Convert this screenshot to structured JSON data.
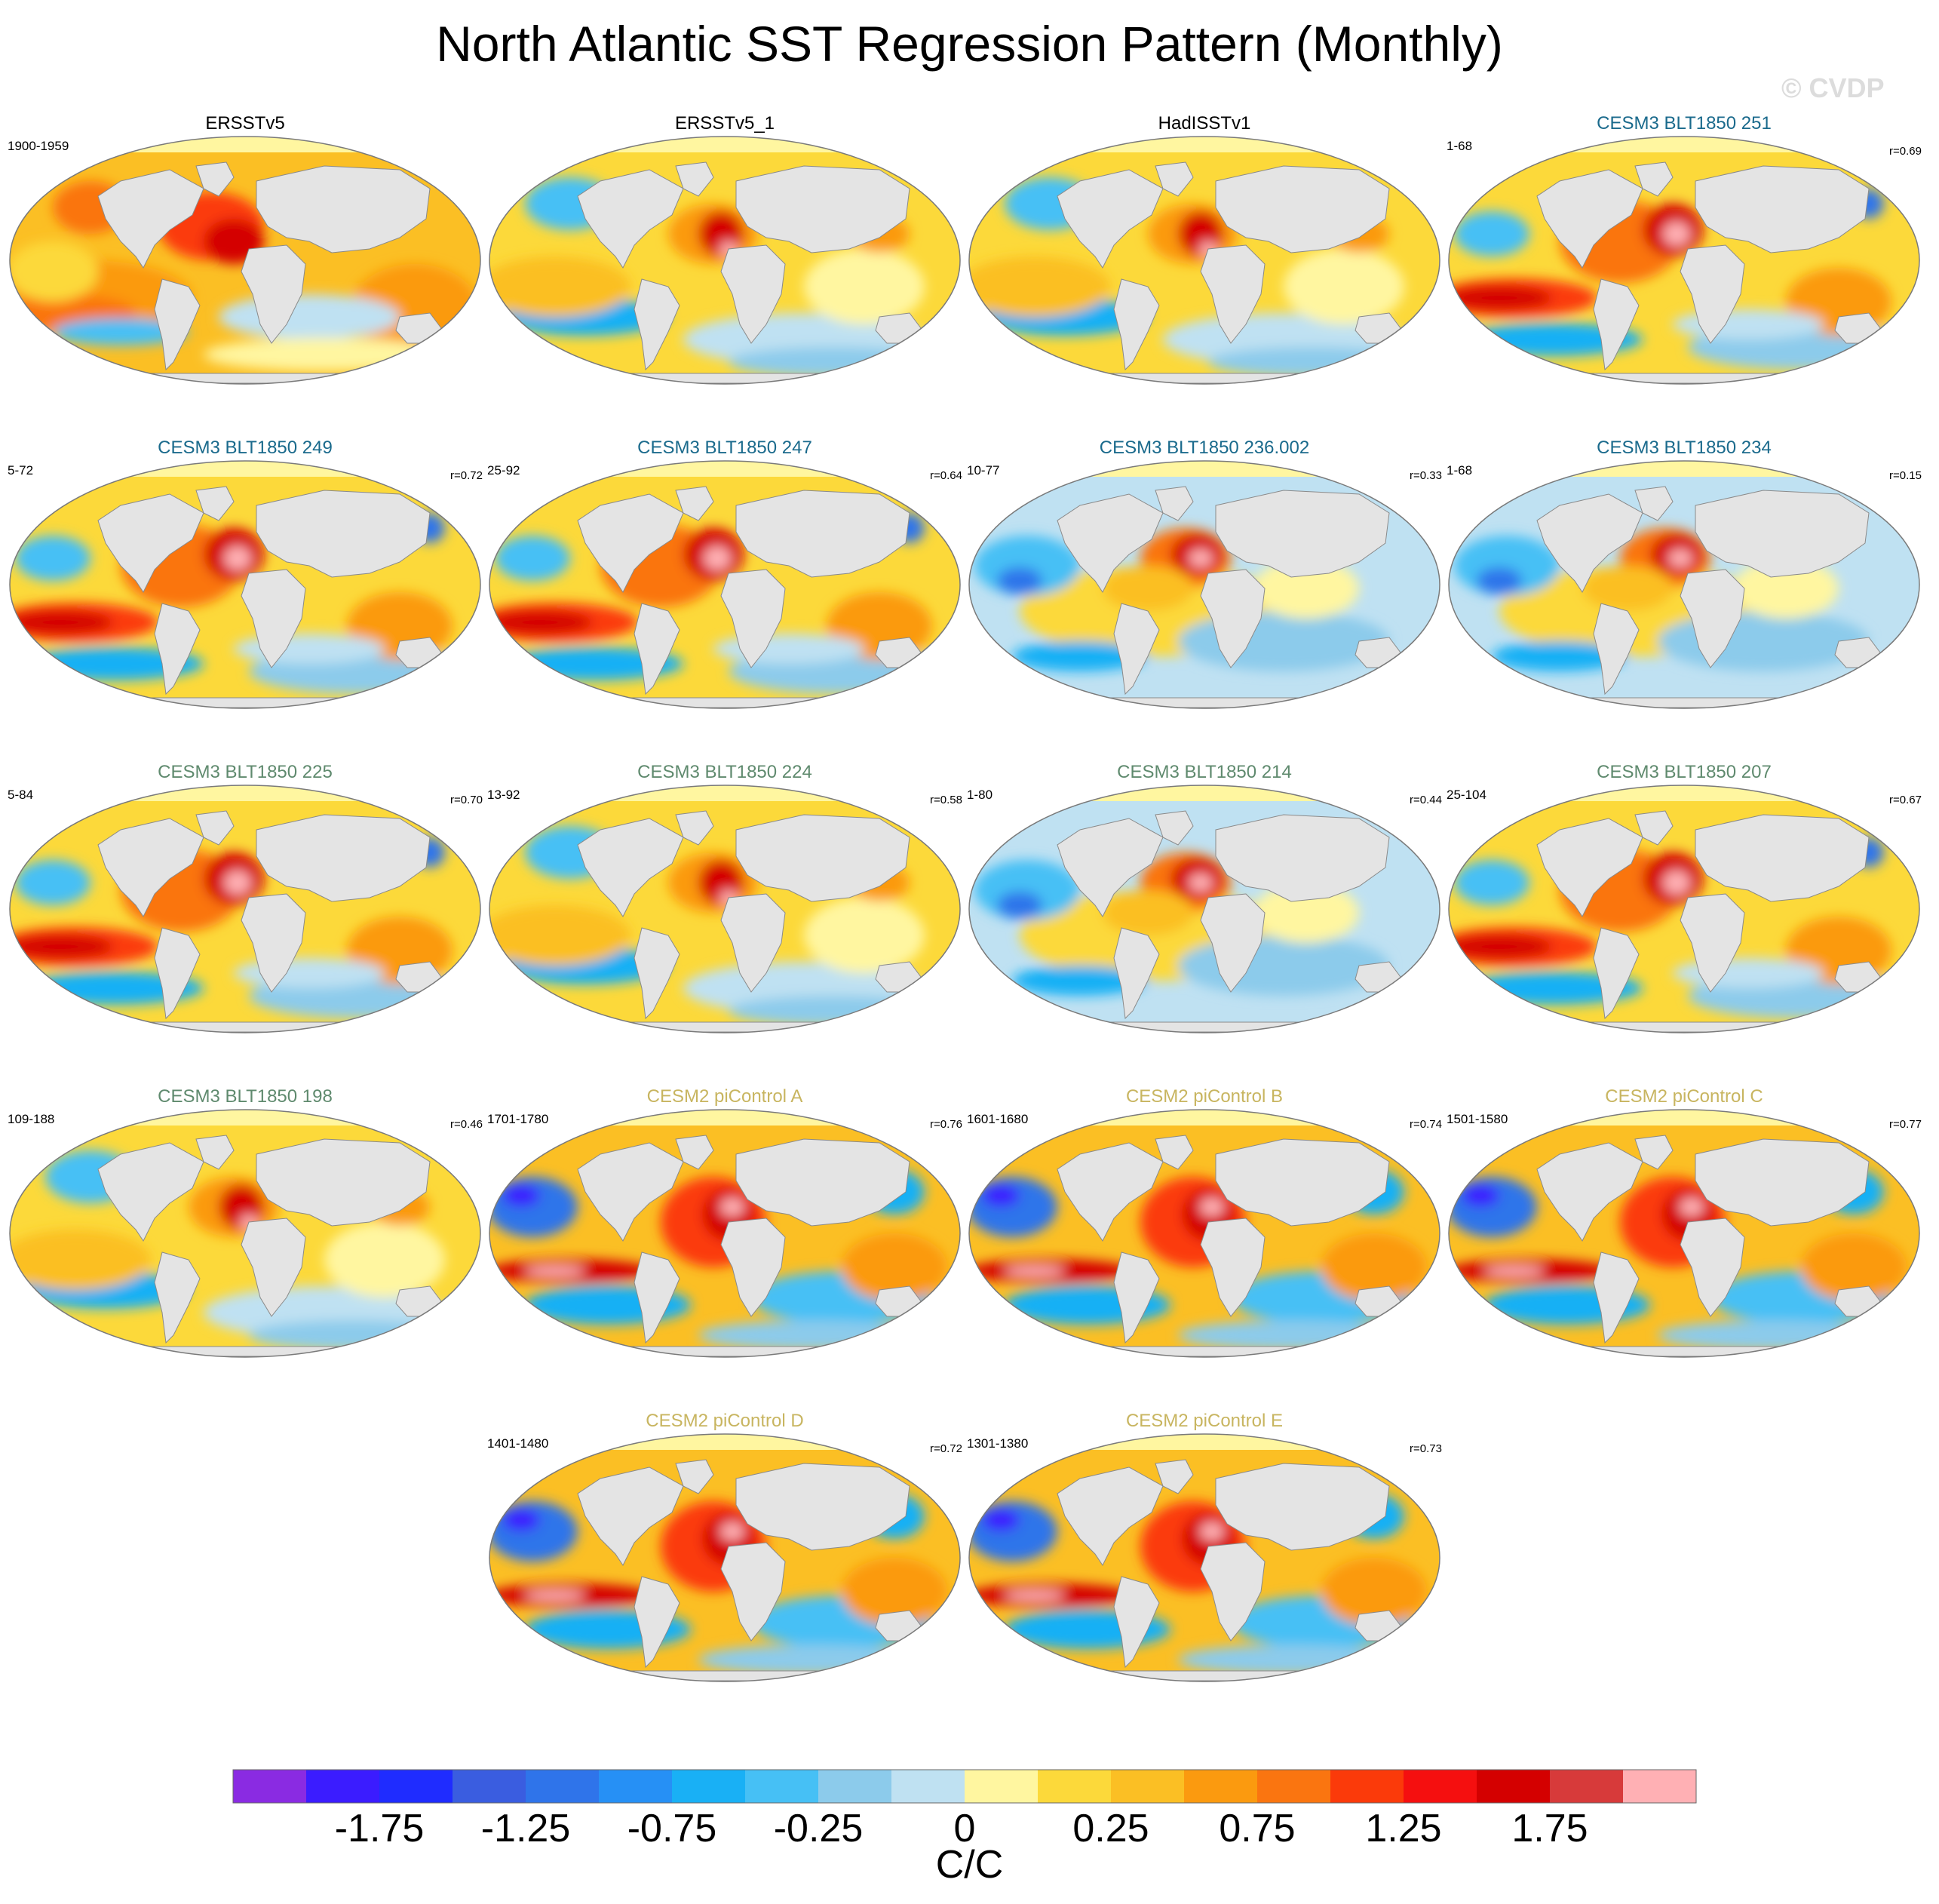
{
  "figure": {
    "title": "North Atlantic SST Regression Pattern (Monthly)",
    "copyright": "© CVDP"
  },
  "panels": [
    {
      "title": "ERSSTv5",
      "period": "1900-1959",
      "corr": "",
      "color": "#000000",
      "pattern": 0
    },
    {
      "title": "ERSSTv5_1",
      "period": "",
      "corr": "",
      "color": "#000000",
      "pattern": 1
    },
    {
      "title": "HadISSTv1",
      "period": "",
      "corr": "",
      "color": "#000000",
      "pattern": 1
    },
    {
      "title": "CESM3 BLT1850 251",
      "period": "1-68",
      "corr": "r=0.69",
      "color": "#1a6a8c",
      "pattern": 2
    },
    {
      "title": "CESM3 BLT1850 249",
      "period": "5-72",
      "corr": "r=0.72",
      "color": "#1a6a8c",
      "pattern": 2
    },
    {
      "title": "CESM3 BLT1850 247",
      "period": "25-92",
      "corr": "r=0.64",
      "color": "#1a6a8c",
      "pattern": 2
    },
    {
      "title": "CESM3 BLT1850 236.002",
      "period": "10-77",
      "corr": "r=0.33",
      "color": "#1a6a8c",
      "pattern": 3
    },
    {
      "title": "CESM3 BLT1850 234",
      "period": "1-68",
      "corr": "r=0.15",
      "color": "#1a6a8c",
      "pattern": 3
    },
    {
      "title": "CESM3 BLT1850 225",
      "period": "5-84",
      "corr": "r=0.70",
      "color": "#5f8a6e",
      "pattern": 2
    },
    {
      "title": "CESM3 BLT1850 224",
      "period": "13-92",
      "corr": "r=0.58",
      "color": "#5f8a6e",
      "pattern": 1
    },
    {
      "title": "CESM3 BLT1850 214",
      "period": "1-80",
      "corr": "r=0.44",
      "color": "#5f8a6e",
      "pattern": 3
    },
    {
      "title": "CESM3 BLT1850 207",
      "period": "25-104",
      "corr": "r=0.67",
      "color": "#5f8a6e",
      "pattern": 2
    },
    {
      "title": "CESM3 BLT1850 198",
      "period": "109-188",
      "corr": "r=0.46",
      "color": "#5f8a6e",
      "pattern": 1
    },
    {
      "title": "CESM2 piControl A",
      "period": "1701-1780",
      "corr": "r=0.76",
      "color": "#c8b560",
      "pattern": 4
    },
    {
      "title": "CESM2 piControl B",
      "period": "1601-1680",
      "corr": "r=0.74",
      "color": "#c8b560",
      "pattern": 4
    },
    {
      "title": "CESM2 piControl C",
      "period": "1501-1580",
      "corr": "r=0.77",
      "color": "#c8b560",
      "pattern": 4
    },
    {
      "title": "CESM2 piControl D",
      "period": "1401-1480",
      "corr": "r=0.72",
      "color": "#c8b560",
      "pattern": 4
    },
    {
      "title": "CESM2 piControl E",
      "period": "1301-1380",
      "corr": "r=0.73",
      "color": "#c8b560",
      "pattern": 4
    }
  ],
  "colorbar": {
    "units": "C/C",
    "colors": [
      "#8a2be2",
      "#3b1cff",
      "#1f2cff",
      "#3a5de0",
      "#2f74ea",
      "#2690f5",
      "#19b0f5",
      "#46c0f5",
      "#8ccbeb",
      "#bfe1f2",
      "#fff6a0",
      "#fcd93a",
      "#fbbf24",
      "#fb9a0f",
      "#fa7510",
      "#fb3a0a",
      "#f50f0f",
      "#d40000",
      "#d73a3a",
      "#ffb0b4"
    ],
    "labels": [
      "-1.75",
      "-1.25",
      "-0.75",
      "-0.25",
      "0",
      "0.25",
      "0.75",
      "1.25",
      "1.75"
    ]
  }
}
